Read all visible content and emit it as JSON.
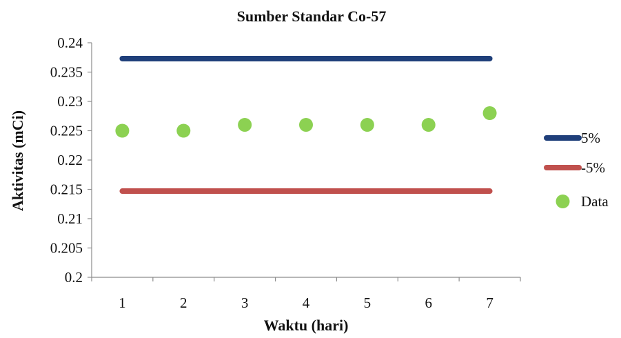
{
  "chart_data": {
    "type": "line",
    "title": "Sumber Standar Co-57",
    "xlabel": "Waktu (hari)",
    "ylabel": "Aktivitas (mCi)",
    "x": [
      1,
      2,
      3,
      4,
      5,
      6,
      7
    ],
    "x_tick_labels": [
      "1",
      "2",
      "3",
      "4",
      "5",
      "6",
      "7"
    ],
    "ylim": [
      0.2,
      0.24
    ],
    "y_tick_labels": [
      "0.24",
      "0.235",
      "0.23",
      "0.225",
      "0.22",
      "0.215",
      "0.21",
      "0.205",
      "0.2"
    ],
    "y_ticks": [
      0.24,
      0.235,
      0.23,
      0.225,
      0.22,
      0.215,
      0.21,
      0.205,
      0.2
    ],
    "grid": false,
    "legend_position": "right",
    "series": [
      {
        "name": "5%",
        "kind": "line",
        "color": "#1f3f7a",
        "values": [
          0.2373,
          0.2373,
          0.2373,
          0.2373,
          0.2373,
          0.2373,
          0.2373
        ]
      },
      {
        "name": "-5%",
        "kind": "line",
        "color": "#c0504d",
        "values": [
          0.2147,
          0.2147,
          0.2147,
          0.2147,
          0.2147,
          0.2147,
          0.2147
        ]
      },
      {
        "name": "Data",
        "kind": "scatter",
        "color": "#8cd152",
        "values": [
          0.225,
          0.225,
          0.226,
          0.226,
          0.226,
          0.226,
          0.228
        ]
      }
    ]
  }
}
